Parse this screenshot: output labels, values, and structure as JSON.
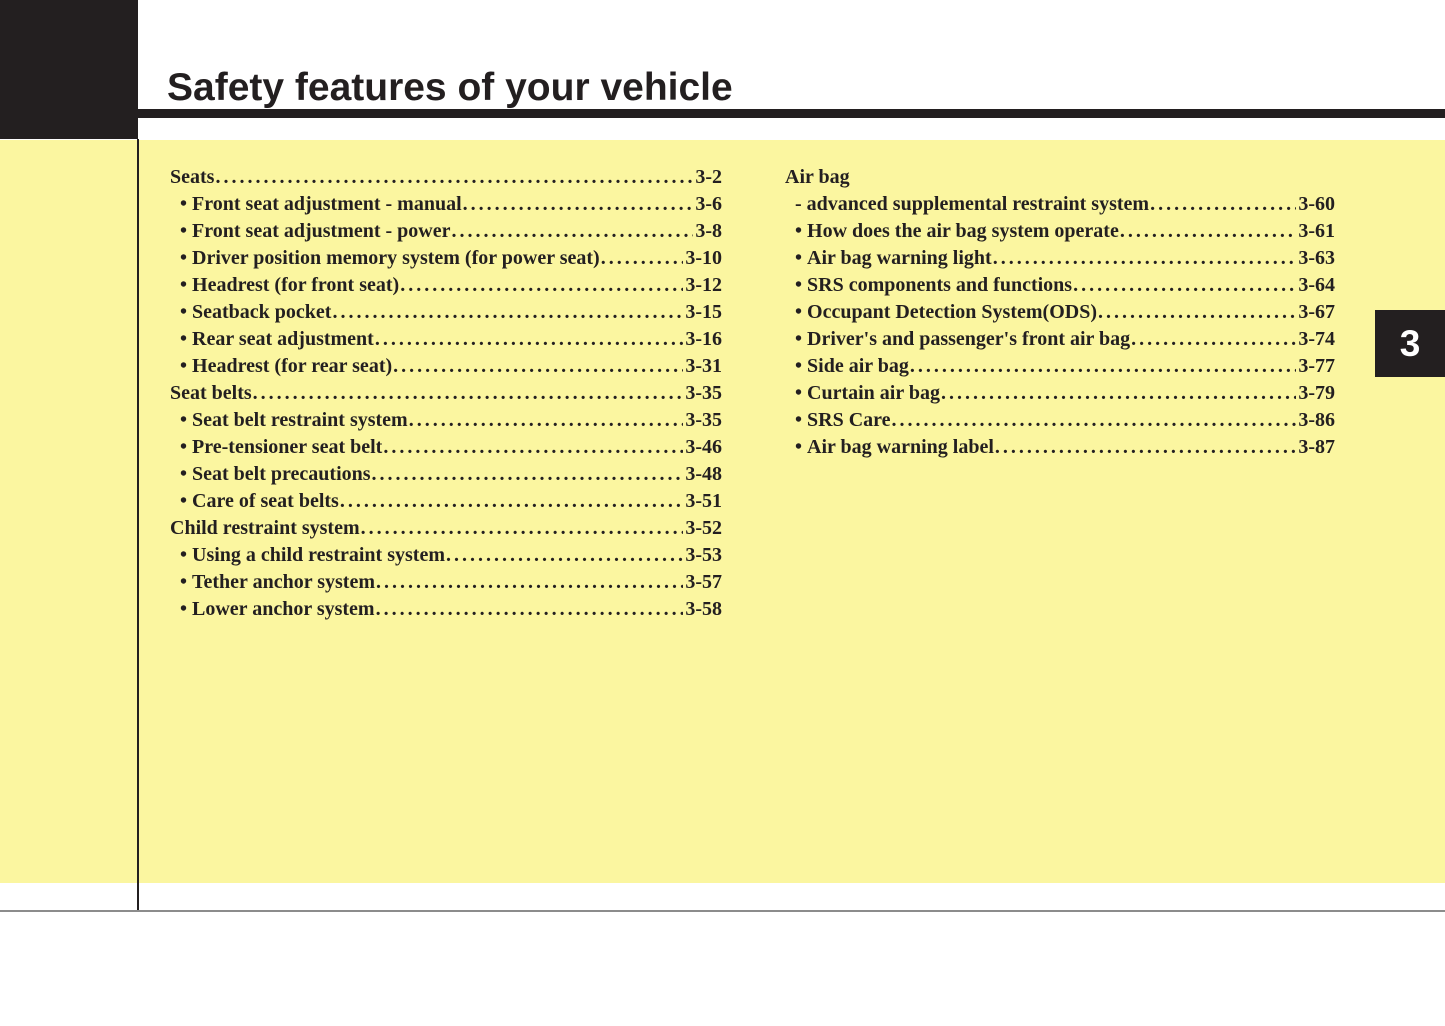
{
  "page": {
    "title": "Safety features of your vehicle",
    "chapter_tab": "3"
  },
  "colors": {
    "content_background": "#fbf6a0",
    "print_black": "#231f20",
    "tab_text": "#ffffff",
    "footer_rule_gray": "#8c8c8c"
  },
  "toc": {
    "left_column": [
      {
        "label": "Seats",
        "page": "3-2",
        "level": "section"
      },
      {
        "label": "Front seat adjustment - manual",
        "page": "3-6",
        "level": "item"
      },
      {
        "label": "Front seat adjustment - power",
        "page": "3-8",
        "level": "item"
      },
      {
        "label": "Driver position memory system (for power seat)",
        "page": "3-10",
        "level": "item"
      },
      {
        "label": "Headrest (for front seat)",
        "page": "3-12",
        "level": "item"
      },
      {
        "label": "Seatback pocket",
        "page": "3-15",
        "level": "item"
      },
      {
        "label": "Rear seat adjustment",
        "page": "3-16",
        "level": "item"
      },
      {
        "label": "Headrest (for rear seat)",
        "page": "3-31",
        "level": "item"
      },
      {
        "label": "Seat belts",
        "page": "3-35",
        "level": "section"
      },
      {
        "label": "Seat belt restraint system",
        "page": "3-35",
        "level": "item"
      },
      {
        "label": "Pre-tensioner seat belt",
        "page": "3-46",
        "level": "item"
      },
      {
        "label": "Seat belt precautions",
        "page": "3-48",
        "level": "item"
      },
      {
        "label": "Care of seat belts",
        "page": "3-51",
        "level": "item"
      },
      {
        "label": "Child restraint system",
        "page": "3-52",
        "level": "section"
      },
      {
        "label": "Using a child restraint system",
        "page": "3-53",
        "level": "item"
      },
      {
        "label": "Tether anchor system",
        "page": "3-57",
        "level": "item"
      },
      {
        "label": "Lower anchor system",
        "page": "3-58",
        "level": "item"
      }
    ],
    "right_column": [
      {
        "label": "Air bag",
        "page": null,
        "level": "section"
      },
      {
        "label": "- advanced supplemental restraint system",
        "page": "3-60",
        "level": "sub"
      },
      {
        "label": "How does the air bag system operate",
        "page": "3-61",
        "level": "item"
      },
      {
        "label": "Air bag warning light",
        "page": "3-63",
        "level": "item"
      },
      {
        "label": "SRS components and functions",
        "page": "3-64",
        "level": "item"
      },
      {
        "label": "Occupant Detection System(ODS)",
        "page": "3-67",
        "level": "item"
      },
      {
        "label": "Driver's and passenger's front air bag",
        "page": "3-74",
        "level": "item"
      },
      {
        "label": "Side air bag",
        "page": "3-77",
        "level": "item"
      },
      {
        "label": "Curtain air bag",
        "page": "3-79",
        "level": "item"
      },
      {
        "label": "SRS Care",
        "page": "3-86",
        "level": "item"
      },
      {
        "label": "Air bag warning label",
        "page": "3-87",
        "level": "item"
      }
    ]
  }
}
